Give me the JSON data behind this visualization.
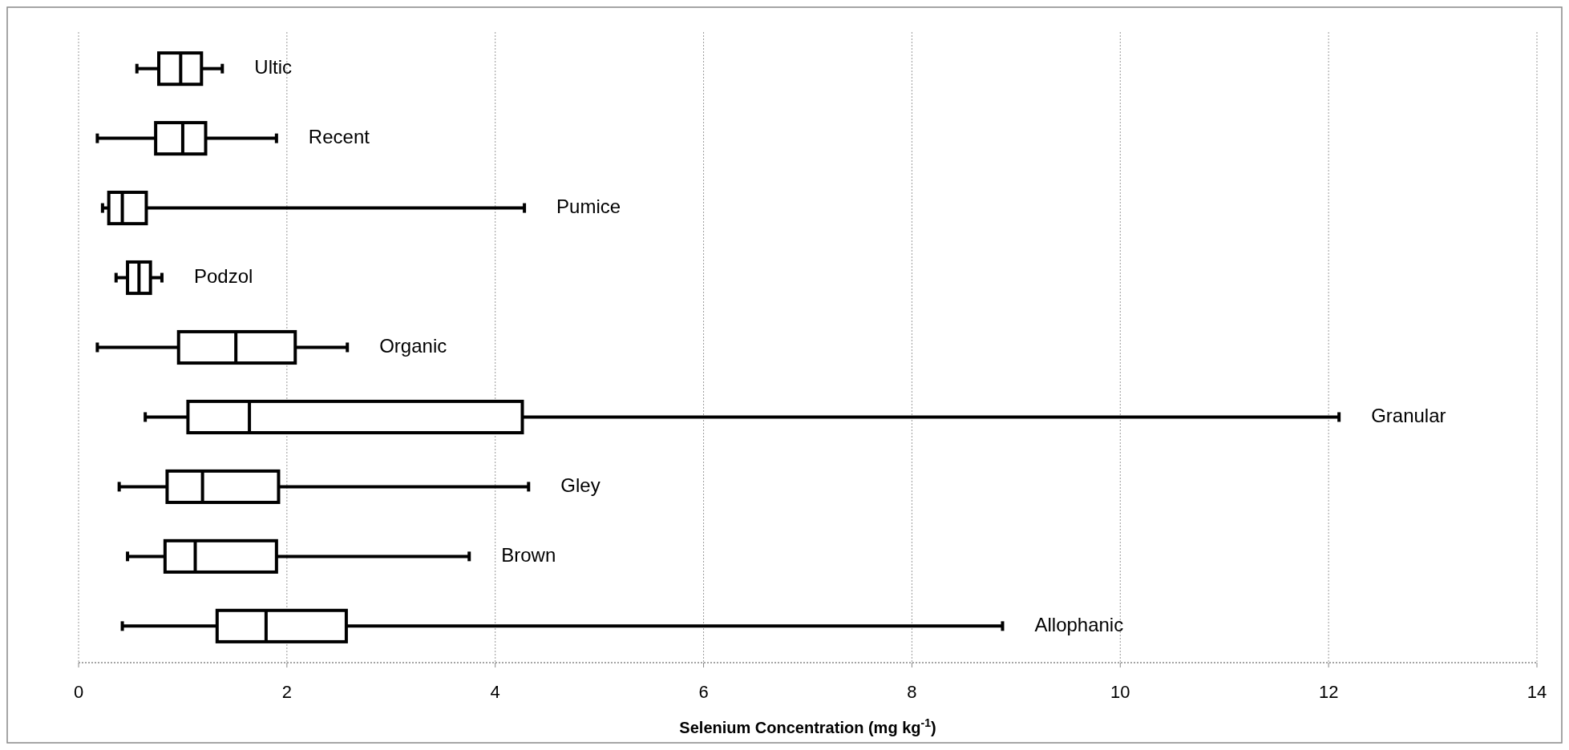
{
  "chart_data": {
    "type": "box",
    "orientation": "horizontal",
    "xlabel": "Selenium Concentration (mg kg$^{-1}$)",
    "categories": [
      "Ultic",
      "Recent",
      "Pumice",
      "Podzol",
      "Organic",
      "Granular",
      "Gley",
      "Brown",
      "Allophanic"
    ],
    "boxes": [
      {
        "low": 0.56,
        "q1": 0.77,
        "median": 0.98,
        "q3": 1.18,
        "high": 1.38
      },
      {
        "low": 0.18,
        "q1": 0.74,
        "median": 1.0,
        "q3": 1.22,
        "high": 1.9
      },
      {
        "low": 0.23,
        "q1": 0.29,
        "median": 0.42,
        "q3": 0.65,
        "high": 4.28
      },
      {
        "low": 0.36,
        "q1": 0.47,
        "median": 0.58,
        "q3": 0.69,
        "high": 0.8
      },
      {
        "low": 0.18,
        "q1": 0.96,
        "median": 1.51,
        "q3": 2.08,
        "high": 2.58
      },
      {
        "low": 0.64,
        "q1": 1.05,
        "median": 1.64,
        "q3": 4.26,
        "high": 12.1
      },
      {
        "low": 0.39,
        "q1": 0.85,
        "median": 1.19,
        "q3": 1.92,
        "high": 4.32
      },
      {
        "low": 0.47,
        "q1": 0.83,
        "median": 1.12,
        "q3": 1.9,
        "high": 3.75
      },
      {
        "low": 0.42,
        "q1": 1.33,
        "median": 1.8,
        "q3": 2.57,
        "high": 8.87
      }
    ],
    "color": "#000000",
    "xlim": [
      0,
      14
    ],
    "xticks": [
      0,
      2,
      4,
      6,
      8,
      10,
      12,
      14
    ],
    "grid": "x"
  }
}
